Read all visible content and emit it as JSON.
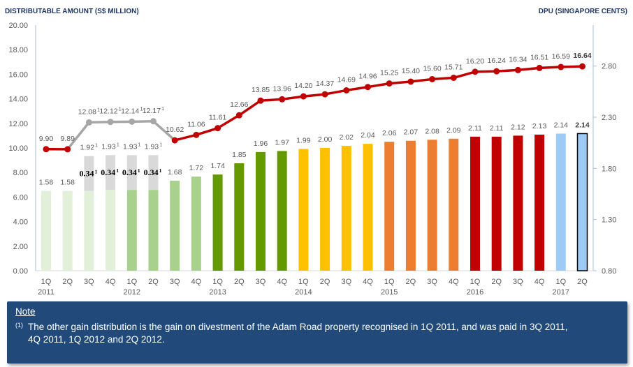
{
  "chart_data": {
    "type": "bar+line",
    "left_axis": {
      "title": "DISTRIBUTABLE AMOUNT (S$ MILLION)",
      "range": [
        0,
        20
      ],
      "ticks": [
        "0.00",
        "2.00",
        "4.00",
        "6.00",
        "8.00",
        "10.00",
        "12.00",
        "14.00",
        "16.00",
        "18.00",
        "20.00"
      ]
    },
    "right_axis": {
      "title": "DPU (SINGAPORE CENTS)",
      "range": [
        0.8,
        3.2
      ],
      "ticks": [
        "0.80",
        "1.30",
        "1.80",
        "2.30",
        "2.80"
      ]
    },
    "grid": false,
    "categories": [
      {
        "q": "1Q",
        "year": "2011"
      },
      {
        "q": "2Q",
        "year": ""
      },
      {
        "q": "3Q",
        "year": ""
      },
      {
        "q": "4Q",
        "year": ""
      },
      {
        "q": "1Q",
        "year": "2012"
      },
      {
        "q": "2Q",
        "year": ""
      },
      {
        "q": "3Q",
        "year": ""
      },
      {
        "q": "4Q",
        "year": ""
      },
      {
        "q": "1Q",
        "year": "2013"
      },
      {
        "q": "2Q",
        "year": ""
      },
      {
        "q": "3Q",
        "year": ""
      },
      {
        "q": "4Q",
        "year": ""
      },
      {
        "q": "1Q",
        "year": "2014"
      },
      {
        "q": "2Q",
        "year": ""
      },
      {
        "q": "3Q",
        "year": ""
      },
      {
        "q": "4Q",
        "year": ""
      },
      {
        "q": "1Q",
        "year": "2015"
      },
      {
        "q": "2Q",
        "year": ""
      },
      {
        "q": "3Q",
        "year": ""
      },
      {
        "q": "4Q",
        "year": ""
      },
      {
        "q": "1Q",
        "year": "2016"
      },
      {
        "q": "2Q",
        "year": ""
      },
      {
        "q": "3Q",
        "year": ""
      },
      {
        "q": "4Q",
        "year": ""
      },
      {
        "q": "1Q",
        "year": "2017"
      },
      {
        "q": "2Q",
        "year": ""
      }
    ],
    "series": [
      {
        "name": "Distributable Amount (S$ million)",
        "type": "line",
        "axis": "left",
        "color": "#c00000",
        "gain_period_color": "#a6a6a6",
        "values": [
          9.9,
          9.89,
          12.08,
          12.12,
          12.14,
          12.17,
          10.62,
          11.06,
          11.61,
          12.66,
          13.85,
          13.96,
          14.2,
          14.37,
          14.69,
          14.96,
          15.25,
          15.4,
          15.6,
          15.71,
          16.2,
          16.24,
          16.34,
          16.51,
          16.59,
          16.64
        ],
        "footnote": [
          "",
          "",
          "1",
          "1",
          "1",
          "1",
          "",
          "",
          "",
          "",
          "",
          "",
          "",
          "",
          "",
          "",
          "",
          "",
          "",
          "",
          "",
          "",
          "",
          "",
          "",
          ""
        ],
        "gain_period": [
          false,
          false,
          true,
          true,
          true,
          true,
          false,
          false,
          false,
          false,
          false,
          false,
          false,
          false,
          false,
          false,
          false,
          false,
          false,
          false,
          false,
          false,
          false,
          false,
          false,
          false
        ],
        "bold": [
          false,
          false,
          false,
          false,
          false,
          false,
          false,
          false,
          false,
          false,
          false,
          false,
          false,
          false,
          false,
          false,
          false,
          false,
          false,
          false,
          false,
          false,
          false,
          false,
          false,
          true
        ]
      },
      {
        "name": "DPU (Singapore cents)",
        "type": "bar",
        "axis": "right",
        "values": [
          1.58,
          1.58,
          1.92,
          1.93,
          1.93,
          1.93,
          1.68,
          1.72,
          1.74,
          1.85,
          1.96,
          1.97,
          1.99,
          2.0,
          2.02,
          2.04,
          2.06,
          2.07,
          2.08,
          2.09,
          2.11,
          2.11,
          2.12,
          2.13,
          2.14,
          2.14
        ],
        "other_gain": [
          0,
          0,
          0.34,
          0.34,
          0.34,
          0.34,
          0,
          0,
          0,
          0,
          0,
          0,
          0,
          0,
          0,
          0,
          0,
          0,
          0,
          0,
          0,
          0,
          0,
          0,
          0,
          0
        ],
        "footnote": [
          "",
          "",
          "1",
          "1",
          "1",
          "1",
          "",
          "",
          "",
          "",
          "",
          "",
          "",
          "",
          "",
          "",
          "",
          "",
          "",
          "",
          "",
          "",
          "",
          "",
          "",
          ""
        ],
        "colors": [
          "#e2efd9",
          "#e2efd9",
          "#e2efd9",
          "#e2efd9",
          "#a9d18e",
          "#a9d18e",
          "#a9d18e",
          "#a9d18e",
          "#639a00",
          "#639a00",
          "#639a00",
          "#639a00",
          "#ffc000",
          "#ffc000",
          "#ffc000",
          "#ffc000",
          "#ed7d31",
          "#ed7d31",
          "#ed7d31",
          "#ed7d31",
          "#c00000",
          "#c00000",
          "#c00000",
          "#c00000",
          "#9dcbf5",
          "#9dcbf5"
        ],
        "gain_color": "#d9d9d9",
        "bold": [
          false,
          false,
          false,
          false,
          false,
          false,
          false,
          false,
          false,
          false,
          false,
          false,
          false,
          false,
          false,
          false,
          false,
          false,
          false,
          false,
          false,
          false,
          false,
          false,
          false,
          true
        ],
        "outlined": [
          false,
          false,
          false,
          false,
          false,
          false,
          false,
          false,
          false,
          false,
          false,
          false,
          false,
          false,
          false,
          false,
          false,
          false,
          false,
          false,
          false,
          false,
          false,
          false,
          false,
          true
        ]
      }
    ]
  },
  "note": {
    "title": "Note",
    "marker": "(1)",
    "lines": [
      "The other gain distribution is the gain on divestment of the Adam Road property recognised in 1Q 2011, and was paid in 3Q 2011,",
      "4Q 2011, 1Q 2012 and 2Q 2012."
    ]
  }
}
